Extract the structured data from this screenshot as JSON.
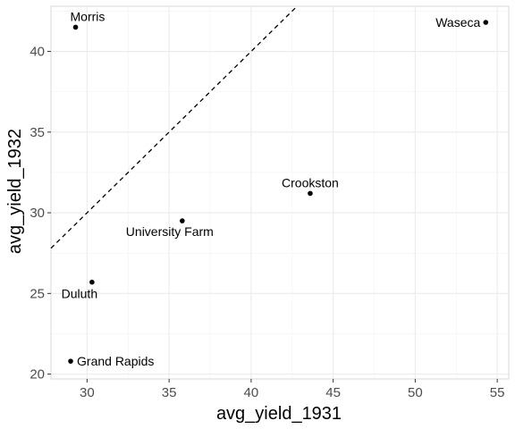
{
  "chart_data": {
    "type": "scatter",
    "title": "",
    "xlabel": "avg_yield_1931",
    "ylabel": "avg_yield_1932",
    "xlim": [
      27.8,
      55.7
    ],
    "ylim": [
      19.7,
      42.8
    ],
    "x_ticks": [
      30,
      35,
      40,
      45,
      50,
      55
    ],
    "y_ticks": [
      20,
      25,
      30,
      35,
      40
    ],
    "grid": true,
    "reference_line": {
      "type": "identity",
      "style": "dashed"
    },
    "points": [
      {
        "label": "Morris",
        "x": 29.3,
        "y": 41.5
      },
      {
        "label": "Waseca",
        "x": 54.3,
        "y": 41.8
      },
      {
        "label": "Crookston",
        "x": 43.6,
        "y": 31.2
      },
      {
        "label": "University Farm",
        "x": 35.8,
        "y": 29.5
      },
      {
        "label": "Duluth",
        "x": 30.3,
        "y": 25.7
      },
      {
        "label": "Grand Rapids",
        "x": 29.0,
        "y": 20.8
      }
    ]
  }
}
